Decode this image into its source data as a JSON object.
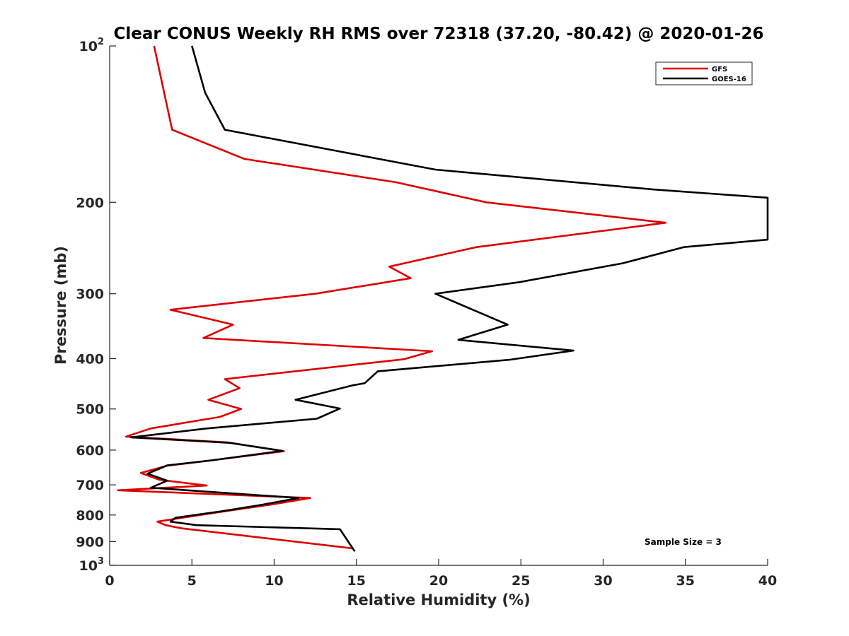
{
  "chart_data": {
    "type": "line",
    "orientation": "vertical-profile",
    "title": "Clear CONUS Weekly RH RMS over 72318 (37.20, -80.42) @ 2020-01-26",
    "xlabel": "Relative Humidity (%)",
    "ylabel": "Pressure (mb)",
    "xlim": [
      0,
      40
    ],
    "ylim": [
      100,
      1000
    ],
    "yscale": "log",
    "y_reversed": true,
    "grid": false,
    "legend_position": "top-right",
    "x_ticks": [
      0,
      5,
      10,
      15,
      20,
      25,
      30,
      35,
      40
    ],
    "x_tick_labels": [
      "0",
      "5",
      "10",
      "15",
      "20",
      "25",
      "30",
      "35",
      "40"
    ],
    "y_ticks": [
      100,
      200,
      300,
      400,
      500,
      600,
      700,
      800,
      900,
      1000
    ],
    "y_tick_labels": [
      {
        "base": "10",
        "exp": "2"
      },
      {
        "base": "200",
        "exp": ""
      },
      {
        "base": "300",
        "exp": ""
      },
      {
        "base": "400",
        "exp": ""
      },
      {
        "base": "500",
        "exp": ""
      },
      {
        "base": "600",
        "exp": ""
      },
      {
        "base": "700",
        "exp": ""
      },
      {
        "base": "800",
        "exp": ""
      },
      {
        "base": "900",
        "exp": ""
      },
      {
        "base": "10",
        "exp": "3"
      }
    ],
    "annotation": "Sample Size = 3",
    "series": [
      {
        "name": "GFS",
        "color": "#dd0000",
        "x": [
          2.7,
          3.8,
          8.2,
          17.4,
          22.9,
          33.8,
          22.3,
          17.0,
          18.3,
          12.5,
          3.7,
          7.5,
          5.7,
          19.6,
          17.9,
          7.0,
          7.9,
          6.0,
          8.0,
          6.7,
          2.5,
          1.0,
          7.2,
          10.6,
          6.0,
          3.5,
          1.9,
          3.0,
          5.9,
          0.5,
          12.2,
          9.8,
          7.0,
          4.4,
          2.9,
          3.4,
          4.4,
          14.8
        ],
        "y": [
          100,
          145,
          165,
          183,
          200,
          219,
          244,
          266,
          280,
          300,
          322,
          344,
          365,
          387,
          401,
          438,
          456,
          480,
          500,
          518,
          545,
          565,
          580,
          603,
          629,
          643,
          664,
          684,
          702,
          717,
          742,
          764,
          787,
          810,
          824,
          837,
          849,
          928
        ]
      },
      {
        "name": "GOES-16",
        "color": "#000000",
        "x": [
          5.0,
          5.8,
          7.0,
          19.8,
          33.1,
          40.0,
          40.0,
          34.9,
          31.2,
          24.9,
          19.8,
          24.2,
          21.2,
          28.2,
          24.3,
          16.3,
          15.5,
          14.8,
          11.3,
          14.0,
          12.6,
          5.9,
          1.3,
          7.3,
          10.5,
          6.0,
          3.5,
          2.3,
          3.5,
          2.5,
          11.5,
          9.3,
          6.8,
          4.0,
          3.7,
          5.3,
          14.0,
          14.9
        ],
        "y": [
          100,
          123,
          145,
          173,
          189,
          196,
          236,
          244,
          262,
          285,
          300,
          344,
          368,
          386,
          402,
          423,
          446,
          450,
          480,
          499,
          522,
          545,
          567,
          581,
          602,
          629,
          642,
          666,
          687,
          709,
          742,
          764,
          787,
          810,
          824,
          837,
          852,
          940
        ]
      }
    ]
  }
}
